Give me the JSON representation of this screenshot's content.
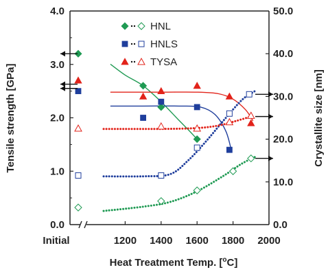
{
  "chart_data": {
    "type": "scatter",
    "title": "",
    "xlabel": "Heat Treatment Temp. [°C]",
    "xlabel_parts": {
      "before": "Heat Treatment Temp. [",
      "sup": "o",
      "after": "C]"
    },
    "ylabel_left": "Tensile strength [GPa]",
    "ylabel_right": "Crystallite size [nm]",
    "x_categorical_label": "Initial",
    "xlim": [
      1000,
      2000
    ],
    "x_ticks": [
      "1200",
      "1400",
      "1600",
      "1800",
      "2000"
    ],
    "ylim_left": [
      0.0,
      4.0
    ],
    "y_ticks_left": [
      "0.0",
      "1.0",
      "2.0",
      "3.0",
      "4.0"
    ],
    "ylim_right": [
      0.0,
      50.0
    ],
    "y_ticks_right": [
      "0.0",
      "10.0",
      "20.0",
      "30.0",
      "40.0",
      "50.0"
    ],
    "legend_position": "top-center",
    "grid": false,
    "series": [
      {
        "name": "HNL",
        "color": "#1f9a53",
        "tensile_marker": "diamond-filled",
        "crystallite_marker": "diamond-open",
        "tensile": [
          {
            "x": "Initial",
            "y": 3.2
          },
          {
            "x": 1300,
            "y": 2.6
          },
          {
            "x": 1400,
            "y": 2.2
          },
          {
            "x": 1600,
            "y": 1.6
          }
        ],
        "crystallite": [
          {
            "x": "Initial",
            "y": 4.0
          },
          {
            "x": 1400,
            "y": 5.5
          },
          {
            "x": 1600,
            "y": 8.0
          },
          {
            "x": 1800,
            "y": 12.5
          },
          {
            "x": 1900,
            "y": 15.5
          }
        ]
      },
      {
        "name": "HNLS",
        "color": "#1f3e9c",
        "tensile_marker": "square-filled",
        "crystallite_marker": "square-open",
        "tensile": [
          {
            "x": "Initial",
            "y": 2.5
          },
          {
            "x": 1300,
            "y": 2.0
          },
          {
            "x": 1400,
            "y": 2.3
          },
          {
            "x": 1600,
            "y": 2.2
          },
          {
            "x": 1780,
            "y": 1.4
          }
        ],
        "crystallite": [
          {
            "x": "Initial",
            "y": 11.5
          },
          {
            "x": 1400,
            "y": 11.5
          },
          {
            "x": 1600,
            "y": 18.0
          },
          {
            "x": 1780,
            "y": 26.0
          },
          {
            "x": 1890,
            "y": 30.5
          }
        ]
      },
      {
        "name": "TYSA",
        "color": "#e2231a",
        "tensile_marker": "triangle-filled",
        "crystallite_marker": "triangle-open",
        "tensile": [
          {
            "x": "Initial",
            "y": 2.7
          },
          {
            "x": 1300,
            "y": 2.4
          },
          {
            "x": 1400,
            "y": 2.5
          },
          {
            "x": 1600,
            "y": 2.6
          },
          {
            "x": 1780,
            "y": 2.4
          },
          {
            "x": 1900,
            "y": 1.9
          }
        ],
        "crystallite": [
          {
            "x": "Initial",
            "y": 22.5
          },
          {
            "x": 1400,
            "y": 23.0
          },
          {
            "x": 1600,
            "y": 22.5
          },
          {
            "x": 1780,
            "y": 24.0
          },
          {
            "x": 1900,
            "y": 25.5
          }
        ]
      }
    ],
    "fit_curves": [
      {
        "series": "HNL",
        "axis": "left",
        "style": "solid",
        "points": [
          [
            1120,
            3.0
          ],
          [
            1200,
            2.8
          ],
          [
            1300,
            2.6
          ],
          [
            1400,
            2.3
          ],
          [
            1500,
            1.95
          ],
          [
            1550,
            1.78
          ],
          [
            1600,
            1.6
          ]
        ]
      },
      {
        "series": "HNLS",
        "axis": "left",
        "style": "solid",
        "points": [
          [
            1120,
            2.22
          ],
          [
            1300,
            2.22
          ],
          [
            1500,
            2.22
          ],
          [
            1620,
            2.2
          ],
          [
            1700,
            2.06
          ],
          [
            1760,
            1.75
          ],
          [
            1790,
            1.4
          ]
        ]
      },
      {
        "series": "TYSA",
        "axis": "left",
        "style": "solid",
        "points": [
          [
            1120,
            2.48
          ],
          [
            1400,
            2.48
          ],
          [
            1600,
            2.48
          ],
          [
            1720,
            2.45
          ],
          [
            1800,
            2.35
          ],
          [
            1870,
            2.15
          ],
          [
            1910,
            1.95
          ]
        ]
      },
      {
        "series": "HNL",
        "axis": "right",
        "style": "dotted",
        "points": [
          [
            1080,
            3.2
          ],
          [
            1300,
            4.2
          ],
          [
            1450,
            5.3
          ],
          [
            1600,
            7.8
          ],
          [
            1750,
            11.5
          ],
          [
            1850,
            14.3
          ],
          [
            1930,
            16.0
          ]
        ]
      },
      {
        "series": "HNLS",
        "axis": "right",
        "style": "dotted",
        "points": [
          [
            1080,
            11.3
          ],
          [
            1300,
            11.3
          ],
          [
            1450,
            11.8
          ],
          [
            1550,
            15.0
          ],
          [
            1650,
            19.5
          ],
          [
            1750,
            24.5
          ],
          [
            1850,
            29.2
          ],
          [
            1920,
            31.2
          ]
        ]
      },
      {
        "series": "TYSA",
        "axis": "right",
        "style": "dotted",
        "points": [
          [
            1080,
            22.4
          ],
          [
            1400,
            22.4
          ],
          [
            1600,
            22.6
          ],
          [
            1720,
            23.2
          ],
          [
            1820,
            24.3
          ],
          [
            1900,
            25.3
          ]
        ]
      }
    ],
    "axis_arrows": [
      {
        "series": "HNL",
        "axis": "left",
        "y": 3.2
      },
      {
        "series": "TYSA",
        "axis": "left",
        "y": 2.63
      },
      {
        "series": "HNLS",
        "axis": "left",
        "y": 2.55
      },
      {
        "series": "HNLS",
        "axis": "right",
        "y": 30.5
      },
      {
        "series": "TYSA",
        "axis": "right",
        "y": 25.3
      },
      {
        "series": "HNL",
        "axis": "right",
        "y": 15.5
      }
    ]
  }
}
